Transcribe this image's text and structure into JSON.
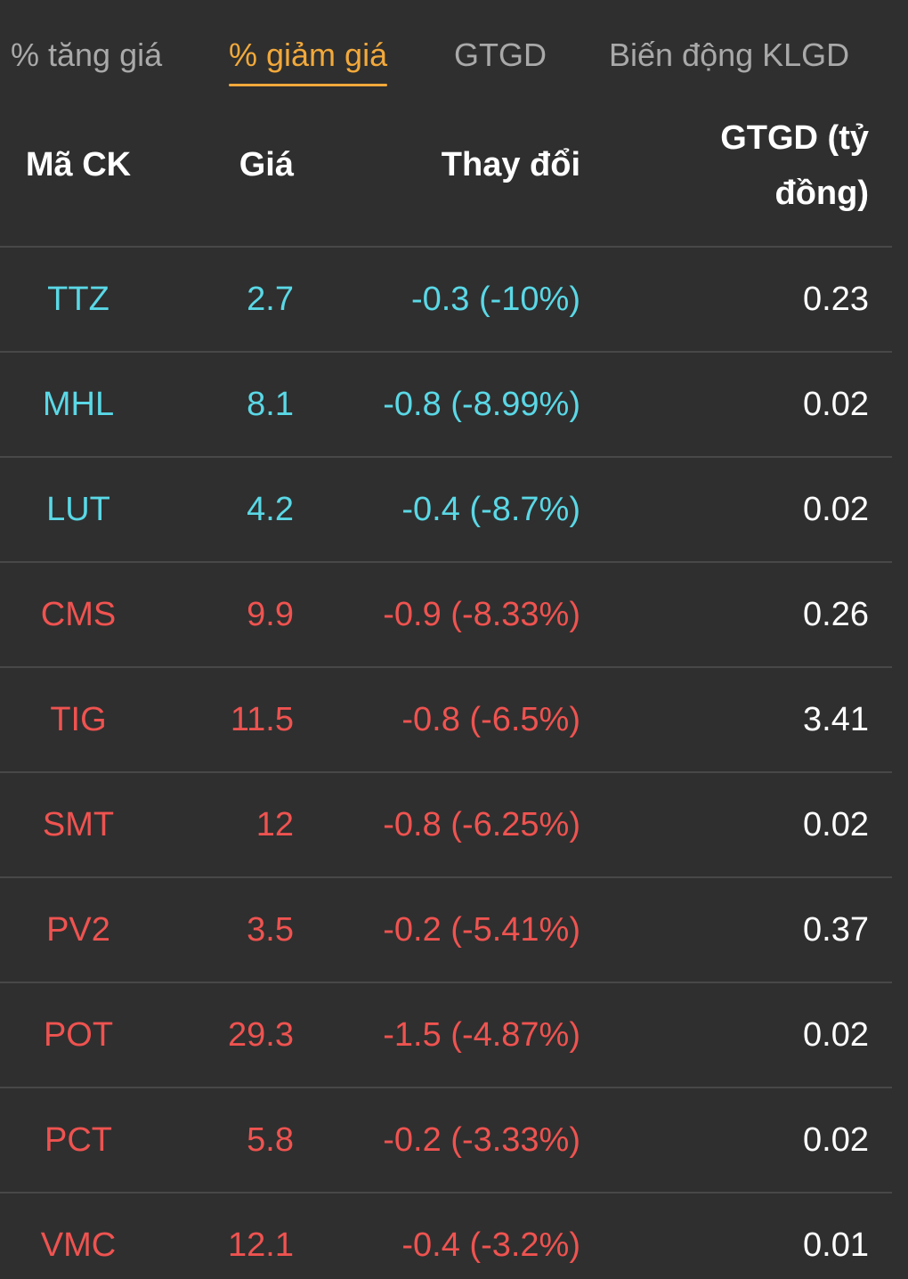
{
  "tabs": [
    {
      "label": "% tăng giá",
      "active": false
    },
    {
      "label": "% giảm giá",
      "active": true
    },
    {
      "label": "GTGD",
      "active": false
    },
    {
      "label": "Biến động KLGD",
      "active": false
    }
  ],
  "table": {
    "headers": {
      "code": "Mã CK",
      "price": "Giá",
      "change": "Thay đổi",
      "value": "GTGD (tỷ đồng)"
    },
    "rows": [
      {
        "code": "TTZ",
        "price": "2.7",
        "change": "-0.3 (-10%)",
        "value": "0.23",
        "tone": "cyan"
      },
      {
        "code": "MHL",
        "price": "8.1",
        "change": "-0.8 (-8.99%)",
        "value": "0.02",
        "tone": "cyan"
      },
      {
        "code": "LUT",
        "price": "4.2",
        "change": "-0.4 (-8.7%)",
        "value": "0.02",
        "tone": "cyan"
      },
      {
        "code": "CMS",
        "price": "9.9",
        "change": "-0.9 (-8.33%)",
        "value": "0.26",
        "tone": "red"
      },
      {
        "code": "TIG",
        "price": "11.5",
        "change": "-0.8 (-6.5%)",
        "value": "3.41",
        "tone": "red"
      },
      {
        "code": "SMT",
        "price": "12",
        "change": "-0.8 (-6.25%)",
        "value": "0.02",
        "tone": "red"
      },
      {
        "code": "PV2",
        "price": "3.5",
        "change": "-0.2 (-5.41%)",
        "value": "0.37",
        "tone": "red"
      },
      {
        "code": "POT",
        "price": "29.3",
        "change": "-1.5 (-4.87%)",
        "value": "0.02",
        "tone": "red"
      },
      {
        "code": "PCT",
        "price": "5.8",
        "change": "-0.2 (-3.33%)",
        "value": "0.02",
        "tone": "red"
      },
      {
        "code": "VMC",
        "price": "12.1",
        "change": "-0.4 (-3.2%)",
        "value": "0.01",
        "tone": "red"
      }
    ]
  },
  "colors": {
    "background": "#2f2f2f",
    "active_tab": "#f2a93b",
    "inactive_tab": "#a9a9a9",
    "floor_cyan": "#5ad8e6",
    "decline_red": "#ef5350",
    "divider": "#484848"
  }
}
